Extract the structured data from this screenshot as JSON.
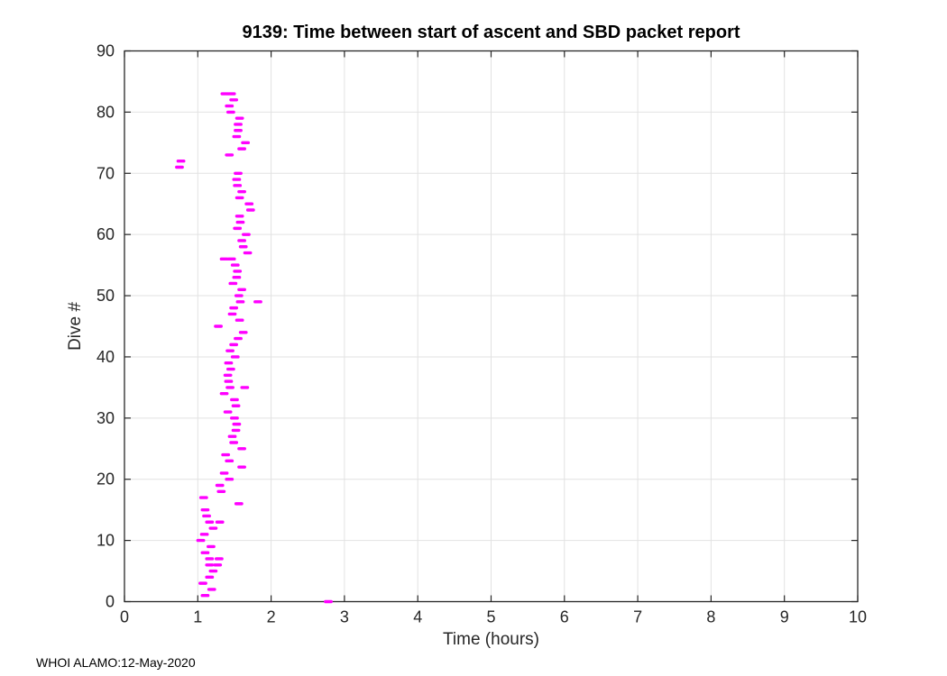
{
  "chart_data": {
    "type": "scatter",
    "title": "9139: Time between start of ascent and SBD packet report",
    "xlabel": "Time (hours)",
    "ylabel": "Dive #",
    "xlim": [
      0,
      10
    ],
    "ylim": [
      0,
      90
    ],
    "xticks": [
      0,
      1,
      2,
      3,
      4,
      5,
      6,
      7,
      8,
      9,
      10
    ],
    "yticks": [
      0,
      10,
      20,
      30,
      40,
      50,
      60,
      70,
      80,
      90
    ],
    "grid": true,
    "legend": "none",
    "marker": "horizontal-dash",
    "marker_color": "#FF00FF",
    "axis_color": "#262626",
    "grid_color": "#E2E2E2",
    "points": [
      [
        2.78,
        0
      ],
      [
        1.1,
        1
      ],
      [
        1.19,
        2
      ],
      [
        1.07,
        3
      ],
      [
        1.16,
        4
      ],
      [
        1.21,
        5
      ],
      [
        1.16,
        6
      ],
      [
        1.27,
        6
      ],
      [
        1.16,
        7
      ],
      [
        1.29,
        7
      ],
      [
        1.1,
        8
      ],
      [
        1.18,
        9
      ],
      [
        1.04,
        10
      ],
      [
        1.09,
        11
      ],
      [
        1.21,
        12
      ],
      [
        1.16,
        13
      ],
      [
        1.3,
        13
      ],
      [
        1.12,
        14
      ],
      [
        1.1,
        15
      ],
      [
        1.56,
        16
      ],
      [
        1.08,
        17
      ],
      [
        1.32,
        18
      ],
      [
        1.3,
        19
      ],
      [
        1.43,
        20
      ],
      [
        1.36,
        21
      ],
      [
        1.6,
        22
      ],
      [
        1.43,
        23
      ],
      [
        1.38,
        24
      ],
      [
        1.6,
        25
      ],
      [
        1.49,
        26
      ],
      [
        1.47,
        27
      ],
      [
        1.52,
        28
      ],
      [
        1.53,
        29
      ],
      [
        1.5,
        30
      ],
      [
        1.41,
        31
      ],
      [
        1.52,
        32
      ],
      [
        1.5,
        33
      ],
      [
        1.36,
        34
      ],
      [
        1.44,
        35
      ],
      [
        1.64,
        35
      ],
      [
        1.42,
        36
      ],
      [
        1.41,
        37
      ],
      [
        1.45,
        38
      ],
      [
        1.42,
        39
      ],
      [
        1.51,
        40
      ],
      [
        1.44,
        41
      ],
      [
        1.49,
        42
      ],
      [
        1.55,
        43
      ],
      [
        1.62,
        44
      ],
      [
        1.28,
        45
      ],
      [
        1.57,
        46
      ],
      [
        1.47,
        47
      ],
      [
        1.49,
        48
      ],
      [
        1.58,
        49
      ],
      [
        1.82,
        49
      ],
      [
        1.56,
        50
      ],
      [
        1.6,
        51
      ],
      [
        1.48,
        52
      ],
      [
        1.53,
        53
      ],
      [
        1.54,
        54
      ],
      [
        1.51,
        55
      ],
      [
        1.36,
        56
      ],
      [
        1.46,
        56
      ],
      [
        1.68,
        57
      ],
      [
        1.62,
        58
      ],
      [
        1.6,
        59
      ],
      [
        1.66,
        60
      ],
      [
        1.54,
        61
      ],
      [
        1.58,
        62
      ],
      [
        1.57,
        63
      ],
      [
        1.72,
        64
      ],
      [
        1.7,
        65
      ],
      [
        1.57,
        66
      ],
      [
        1.6,
        67
      ],
      [
        1.54,
        68
      ],
      [
        1.53,
        69
      ],
      [
        1.55,
        70
      ],
      [
        0.75,
        71
      ],
      [
        0.77,
        72
      ],
      [
        1.43,
        73
      ],
      [
        1.6,
        74
      ],
      [
        1.65,
        75
      ],
      [
        1.53,
        76
      ],
      [
        1.55,
        77
      ],
      [
        1.55,
        78
      ],
      [
        1.57,
        79
      ],
      [
        1.45,
        80
      ],
      [
        1.43,
        81
      ],
      [
        1.49,
        82
      ],
      [
        1.37,
        83
      ],
      [
        1.46,
        83
      ]
    ]
  },
  "footer": {
    "text": "WHOI ALAMO:12-May-2020"
  }
}
